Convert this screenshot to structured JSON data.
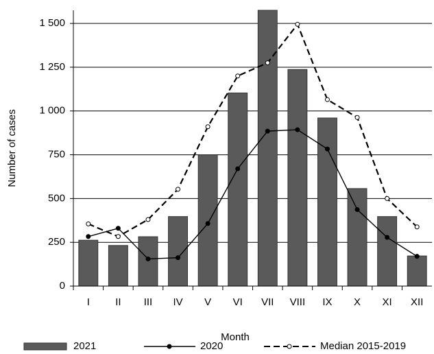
{
  "chart_data": {
    "type": "bar",
    "y_label": "Number of cases",
    "x_label": "Month",
    "categories": [
      "I",
      "II",
      "III",
      "IV",
      "V",
      "VI",
      "VII",
      "VIII",
      "IX",
      "X",
      "XI",
      "XII"
    ],
    "series": [
      {
        "name": "2021",
        "type": "bar",
        "color": "#5a5a5a",
        "values": [
          262,
          232,
          282,
          397,
          750,
          1103,
          1575,
          1237,
          960,
          557,
          397,
          172
        ]
      },
      {
        "name": "2020",
        "type": "line",
        "color": "#000000",
        "values": [
          283,
          330,
          155,
          162,
          357,
          670,
          885,
          893,
          783,
          437,
          278,
          170
        ]
      },
      {
        "name": "Median 2015-2019",
        "type": "dashed-line",
        "color": "#000000",
        "values": [
          355,
          283,
          380,
          553,
          910,
          1200,
          1275,
          1495,
          1065,
          963,
          500,
          338
        ]
      }
    ],
    "ylim": [
      0,
      1575
    ],
    "yticks": [
      0,
      250,
      500,
      750,
      {
        "value": 1000,
        "label": "1 000"
      },
      {
        "value": 1250,
        "label": "1 250"
      },
      {
        "value": 1500,
        "label": "1 500"
      }
    ],
    "grid": true
  }
}
